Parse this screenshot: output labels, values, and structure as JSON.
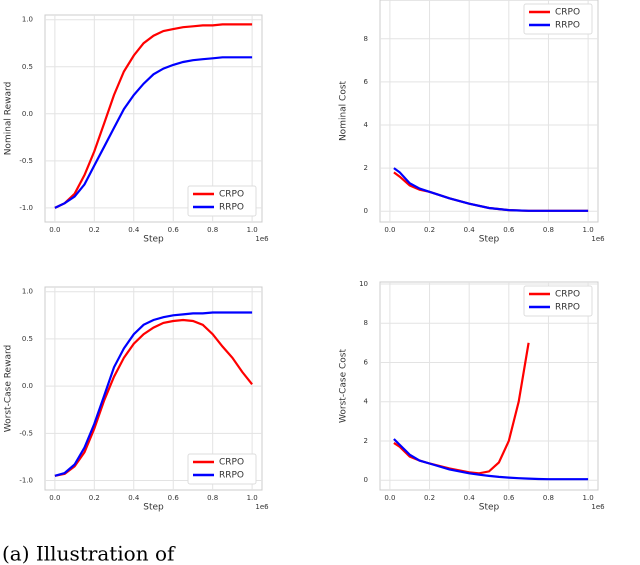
{
  "chart_data": [
    {
      "type": "line",
      "xlabel": "Step",
      "ylabel": "Nominal Reward",
      "x_offset": "1e6",
      "x": [
        0,
        0.05,
        0.1,
        0.15,
        0.2,
        0.25,
        0.3,
        0.35,
        0.4,
        0.45,
        0.5,
        0.55,
        0.6,
        0.65,
        0.7,
        0.75,
        0.8,
        0.85,
        0.9,
        0.95,
        1.0
      ],
      "series": [
        {
          "name": "CRPO",
          "color": "#ff0000",
          "values": [
            -1.0,
            -0.95,
            -0.85,
            -0.65,
            -0.4,
            -0.1,
            0.2,
            0.45,
            0.62,
            0.75,
            0.83,
            0.88,
            0.9,
            0.92,
            0.93,
            0.94,
            0.94,
            0.95,
            0.95,
            0.95,
            0.95
          ]
        },
        {
          "name": "RRPO",
          "color": "#0000ff",
          "values": [
            -1.0,
            -0.95,
            -0.88,
            -0.75,
            -0.55,
            -0.35,
            -0.15,
            0.05,
            0.2,
            0.32,
            0.42,
            0.48,
            0.52,
            0.55,
            0.57,
            0.58,
            0.59,
            0.6,
            0.6,
            0.6,
            0.6
          ]
        }
      ],
      "xlim": [
        -0.05,
        1.05
      ],
      "ylim": [
        -1.15,
        1.05
      ],
      "xticks": [
        {
          "value": 0,
          "label": "0.0"
        },
        0.2,
        0.4,
        0.6,
        0.8,
        {
          "value": 1,
          "label": "1.0"
        }
      ],
      "yticks": [
        {
          "value": 1,
          "label": "1.0"
        },
        0.5,
        {
          "value": 0,
          "label": "0.0"
        },
        -0.5,
        {
          "value": -1,
          "label": "-1.0"
        }
      ],
      "grid": true,
      "legend": "lower-right"
    },
    {
      "type": "line",
      "xlabel": "Step",
      "ylabel": "Nominal Cost",
      "x_offset": "1e6",
      "x": [
        0.02,
        0.05,
        0.1,
        0.15,
        0.2,
        0.25,
        0.3,
        0.4,
        0.5,
        0.6,
        0.7,
        0.8,
        0.9,
        1.0
      ],
      "series": [
        {
          "name": "CRPO",
          "color": "#ff0000",
          "values": [
            1.8,
            1.6,
            1.2,
            1.0,
            0.9,
            0.75,
            0.6,
            0.35,
            0.15,
            0.05,
            0.02,
            0.02,
            0.02,
            0.02
          ]
        },
        {
          "name": "RRPO",
          "color": "#0000ff",
          "values": [
            2.0,
            1.8,
            1.3,
            1.05,
            0.9,
            0.75,
            0.6,
            0.35,
            0.15,
            0.05,
            0.02,
            0.02,
            0.02,
            0.02
          ]
        }
      ],
      "xlim": [
        -0.05,
        1.05
      ],
      "ylim": [
        -0.5,
        9.8
      ],
      "xticks": [
        {
          "value": 0,
          "label": "0.0"
        },
        0.2,
        0.4,
        0.6,
        0.8,
        {
          "value": 1,
          "label": "1.0"
        }
      ],
      "yticks": [
        0,
        2,
        4,
        6,
        8
      ],
      "grid": true,
      "legend": "upper-right"
    },
    {
      "type": "line",
      "xlabel": "Step",
      "ylabel": "Worst-Case Reward",
      "x_offset": "1e6",
      "x": [
        0,
        0.05,
        0.1,
        0.15,
        0.2,
        0.25,
        0.3,
        0.35,
        0.4,
        0.45,
        0.5,
        0.55,
        0.6,
        0.65,
        0.7,
        0.75,
        0.8,
        0.85,
        0.9,
        0.95,
        1.0
      ],
      "series": [
        {
          "name": "CRPO",
          "color": "#ff0000",
          "values": [
            -0.95,
            -0.93,
            -0.85,
            -0.7,
            -0.45,
            -0.15,
            0.1,
            0.3,
            0.45,
            0.55,
            0.62,
            0.67,
            0.69,
            0.7,
            0.69,
            0.65,
            0.55,
            0.42,
            0.3,
            0.15,
            0.02
          ]
        },
        {
          "name": "RRPO",
          "color": "#0000ff",
          "values": [
            -0.95,
            -0.92,
            -0.83,
            -0.65,
            -0.4,
            -0.1,
            0.2,
            0.4,
            0.55,
            0.65,
            0.7,
            0.73,
            0.75,
            0.76,
            0.77,
            0.77,
            0.78,
            0.78,
            0.78,
            0.78,
            0.78
          ]
        }
      ],
      "xlim": [
        -0.05,
        1.05
      ],
      "ylim": [
        -1.1,
        1.05
      ],
      "xticks": [
        {
          "value": 0,
          "label": "0.0"
        },
        0.2,
        0.4,
        0.6,
        0.8,
        {
          "value": 1,
          "label": "1.0"
        }
      ],
      "yticks": [
        {
          "value": 1,
          "label": "1.0"
        },
        0.5,
        {
          "value": 0,
          "label": "0.0"
        },
        -0.5,
        {
          "value": -1,
          "label": "-1.0"
        }
      ],
      "grid": true,
      "legend": "lower-right"
    },
    {
      "type": "line",
      "xlabel": "Step",
      "ylabel": "Worst-Case Cost",
      "x_offset": "1e6",
      "x": [
        0.02,
        0.05,
        0.1,
        0.15,
        0.2,
        0.3,
        0.4,
        0.45,
        0.5,
        0.55,
        0.6,
        0.65,
        0.7,
        0.75,
        0.8,
        0.9,
        1.0
      ],
      "series": [
        {
          "name": "CRPO",
          "color": "#ff0000",
          "values": [
            1.9,
            1.7,
            1.2,
            1.0,
            0.85,
            0.6,
            0.4,
            0.35,
            0.45,
            0.9,
            2.0,
            4.0,
            7.0,
            null,
            null,
            null,
            null
          ]
        },
        {
          "name": "RRPO",
          "color": "#0000ff",
          "values": [
            2.1,
            1.8,
            1.3,
            1.0,
            0.85,
            0.55,
            0.35,
            0.28,
            0.22,
            0.17,
            0.13,
            0.1,
            0.08,
            0.06,
            0.05,
            0.05,
            0.05
          ]
        }
      ],
      "xlim": [
        -0.05,
        1.05
      ],
      "ylim": [
        -0.5,
        10.1
      ],
      "xticks": [
        {
          "value": 0,
          "label": "0.0"
        },
        0.2,
        0.4,
        0.6,
        0.8,
        {
          "value": 1,
          "label": "1.0"
        }
      ],
      "yticks": [
        0,
        2,
        4,
        6,
        8,
        10
      ],
      "grid": true,
      "legend": "upper-right"
    }
  ],
  "caption": "(a) Illustration of"
}
